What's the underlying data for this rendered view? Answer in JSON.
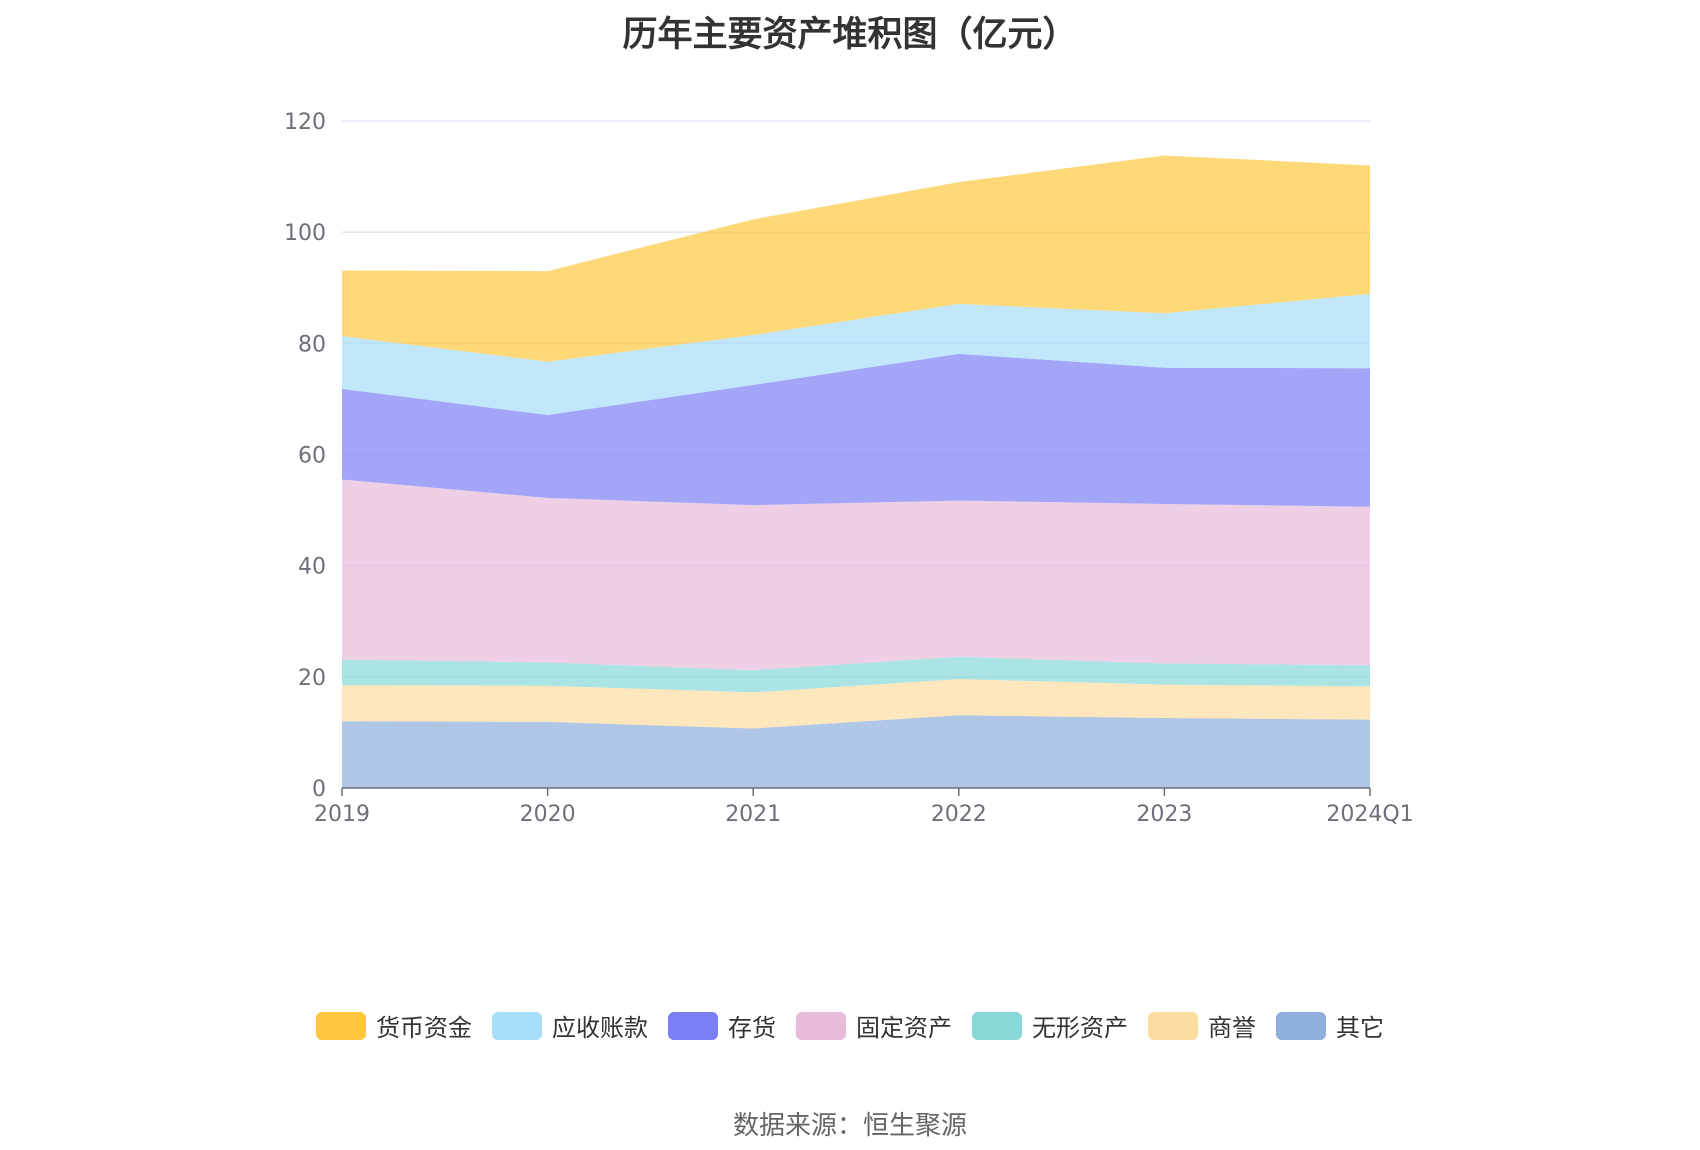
{
  "chart_data": {
    "type": "area",
    "stacked": true,
    "title": "历年主要资产堆积图（亿元）",
    "categories": [
      "2019",
      "2020",
      "2021",
      "2022",
      "2023",
      "2024Q1"
    ],
    "ylim": [
      0,
      120
    ],
    "yticks": [
      0,
      20,
      40,
      60,
      80,
      100,
      120
    ],
    "grid": true,
    "legend_position": "bottom",
    "series": [
      {
        "name": "其它",
        "color": "#8eaedc",
        "values": [
          12.0,
          11.9,
          10.7,
          13.1,
          12.6,
          12.3
        ]
      },
      {
        "name": "商誉",
        "color": "#fddd9f",
        "values": [
          6.5,
          6.5,
          6.5,
          6.5,
          6.0,
          6.0
        ]
      },
      {
        "name": "无形资产",
        "color": "#88d8d8",
        "values": [
          4.6,
          4.2,
          4.0,
          4.0,
          3.8,
          3.8
        ]
      },
      {
        "name": "固定资产",
        "color": "#e8bbda",
        "values": [
          32.4,
          29.6,
          29.7,
          28.1,
          28.7,
          28.5
        ]
      },
      {
        "name": "存货",
        "color": "#7b7ff5",
        "values": [
          16.3,
          14.9,
          21.6,
          26.4,
          24.5,
          24.9
        ]
      },
      {
        "name": "应收账款",
        "color": "#a8ddf8",
        "values": [
          9.5,
          9.6,
          9.0,
          9.0,
          9.8,
          13.4
        ]
      },
      {
        "name": "货币资金",
        "color": "#ffc73e",
        "values": [
          11.8,
          16.3,
          20.8,
          21.9,
          28.4,
          23.1
        ]
      }
    ]
  },
  "source_note": "数据来源：恒生聚源"
}
